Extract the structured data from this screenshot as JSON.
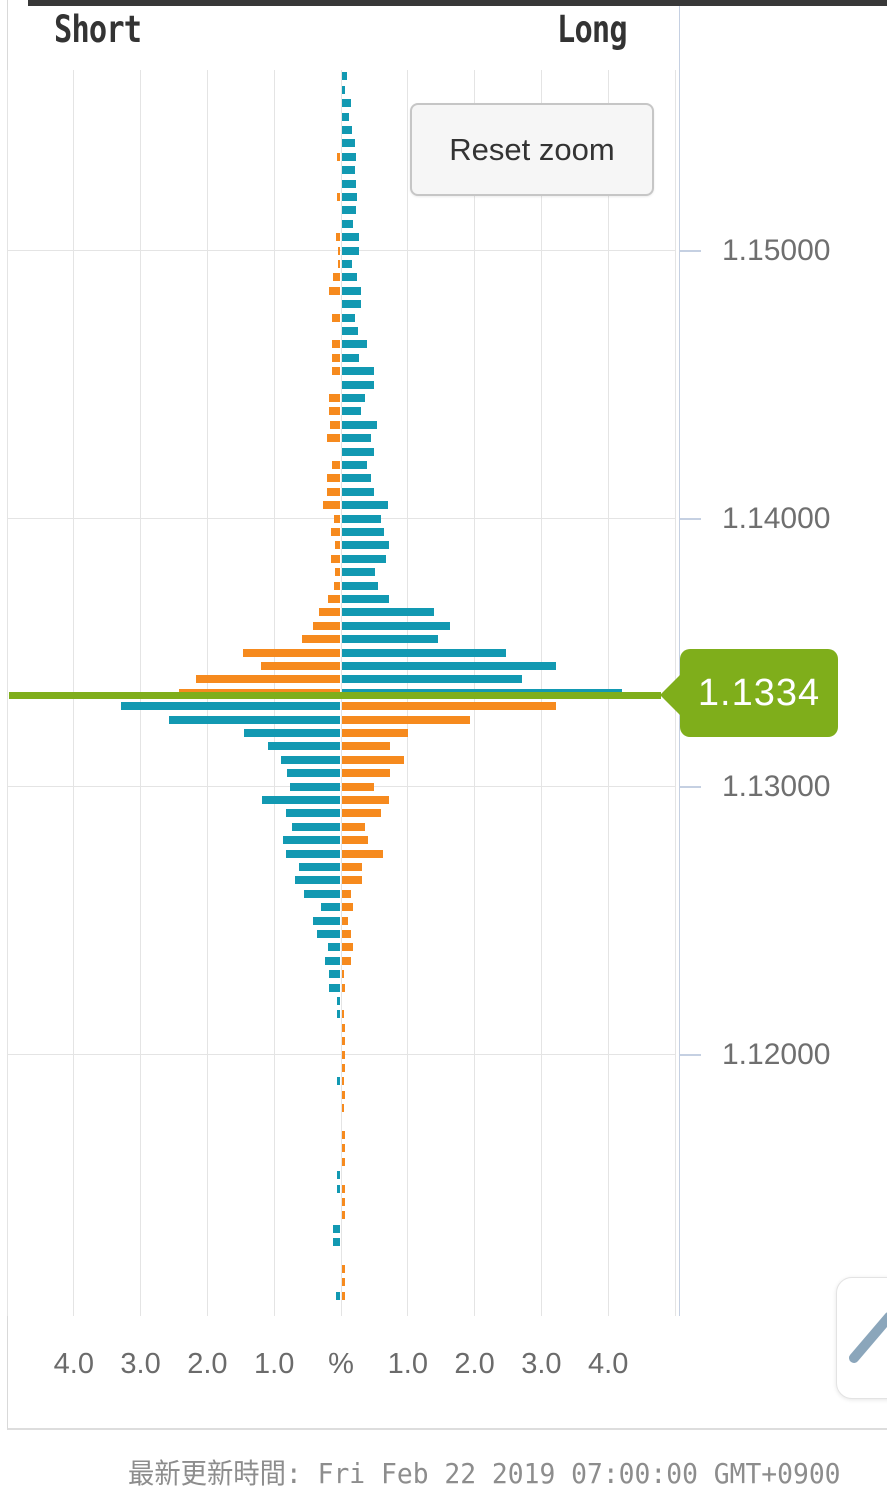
{
  "header": {
    "short": "Short",
    "long": "Long"
  },
  "controls": {
    "reset_zoom": "Reset zoom"
  },
  "price_flag": {
    "text": "1.1334"
  },
  "footer": {
    "last_update": "最新更新時間: Fri Feb 22 2019 07:00:00 GMT+0900"
  },
  "colors": {
    "profit_teal": "#1299b2",
    "loss_orange": "#f68a1e",
    "price_line_green": "#7fae1b",
    "grid": "#e4e4e4",
    "axis": "#c5d0e2",
    "top_bar": "#383838",
    "icon_blue_gray": "#8ba6bb"
  },
  "chart_data": {
    "type": "bar",
    "variant": "diverging horizontal open-positions pyramid (short left / long right)",
    "legend": {
      "left": "Short",
      "right": "Long"
    },
    "x_axis": {
      "unit": "percent",
      "range_pct": [
        -5,
        5
      ],
      "grid": true,
      "tick_labels": [
        "4.0",
        "3.0",
        "2.0",
        "1.0",
        "%",
        "1.0",
        "2.0",
        "3.0",
        "4.0"
      ],
      "tick_values": [
        -4,
        -3,
        -2,
        -1,
        0,
        1,
        2,
        3,
        4
      ]
    },
    "y_axis": {
      "side": "right",
      "ticks": [
        {
          "label": "1.15000",
          "value": 1.15
        },
        {
          "label": "1.14000",
          "value": 1.14
        },
        {
          "label": "1.13000",
          "value": 1.13
        },
        {
          "label": "1.12000",
          "value": 1.12
        }
      ]
    },
    "current_price": {
      "value": 1.1334,
      "label": "1.1334"
    },
    "price_bin_size": 0.0005,
    "color_rule": "bins above current price: short=orange, long=teal; bins below current price: short=teal, long=orange",
    "columns": [
      "price",
      "short_pct",
      "long_pct"
    ],
    "bars": [
      [
        1.1565,
        0,
        0.07
      ],
      [
        1.156,
        0,
        0.05
      ],
      [
        1.1555,
        0,
        0.14
      ],
      [
        1.155,
        0,
        0.1
      ],
      [
        1.1545,
        0,
        0.15
      ],
      [
        1.154,
        0,
        0.19
      ],
      [
        1.1535,
        0.045,
        0.21
      ],
      [
        1.153,
        0,
        0.2
      ],
      [
        1.1525,
        0,
        0.21
      ],
      [
        1.152,
        0.05,
        0.22
      ],
      [
        1.1515,
        0,
        0.21
      ],
      [
        1.151,
        0,
        0.16
      ],
      [
        1.1505,
        0.06,
        0.25
      ],
      [
        1.15,
        0.03,
        0.26
      ],
      [
        1.1495,
        0.03,
        0.15
      ],
      [
        1.149,
        0.1,
        0.22
      ],
      [
        1.1485,
        0.16,
        0.29
      ],
      [
        1.148,
        0,
        0.29
      ],
      [
        1.1475,
        0.115,
        0.19
      ],
      [
        1.147,
        0,
        0.24
      ],
      [
        1.1465,
        0.115,
        0.38
      ],
      [
        1.146,
        0.115,
        0.25
      ],
      [
        1.1455,
        0.115,
        0.48
      ],
      [
        1.145,
        0,
        0.48
      ],
      [
        1.1445,
        0.16,
        0.34
      ],
      [
        1.144,
        0.16,
        0.29
      ],
      [
        1.1435,
        0.145,
        0.52
      ],
      [
        1.143,
        0.2,
        0.43
      ],
      [
        1.1425,
        0,
        0.48
      ],
      [
        1.142,
        0.115,
        0.38
      ],
      [
        1.1415,
        0.2,
        0.43
      ],
      [
        1.141,
        0.2,
        0.48
      ],
      [
        1.1405,
        0.25,
        0.69
      ],
      [
        1.14,
        0.095,
        0.58
      ],
      [
        1.1395,
        0.135,
        0.63
      ],
      [
        1.139,
        0.08,
        0.71
      ],
      [
        1.1385,
        0.135,
        0.66
      ],
      [
        1.138,
        0.08,
        0.49
      ],
      [
        1.1375,
        0.095,
        0.54
      ],
      [
        1.137,
        0.175,
        0.71
      ],
      [
        1.1365,
        0.31,
        1.38
      ],
      [
        1.136,
        0.4,
        1.61
      ],
      [
        1.1355,
        0.57,
        1.43
      ],
      [
        1.135,
        1.45,
        2.46
      ],
      [
        1.1345,
        1.18,
        3.2
      ],
      [
        1.134,
        2.15,
        2.7
      ],
      [
        1.1335,
        2.41,
        4.19
      ],
      [
        1.133,
        3.28,
        3.2
      ],
      [
        1.1325,
        2.56,
        1.92
      ],
      [
        1.132,
        1.44,
        0.99
      ],
      [
        1.1315,
        1.08,
        0.72
      ],
      [
        1.131,
        0.88,
        0.93
      ],
      [
        1.1305,
        0.8,
        0.72
      ],
      [
        1.13,
        0.75,
        0.48
      ],
      [
        1.1295,
        1.17,
        0.71
      ],
      [
        1.129,
        0.81,
        0.58
      ],
      [
        1.1285,
        0.72,
        0.35
      ],
      [
        1.128,
        0.85,
        0.39
      ],
      [
        1.1275,
        0.81,
        0.62
      ],
      [
        1.127,
        0.62,
        0.3
      ],
      [
        1.1265,
        0.67,
        0.3
      ],
      [
        1.126,
        0.54,
        0.13
      ],
      [
        1.1255,
        0.29,
        0.17
      ],
      [
        1.125,
        0.4,
        0.09
      ],
      [
        1.1245,
        0.35,
        0.13
      ],
      [
        1.124,
        0.18,
        0.16
      ],
      [
        1.1235,
        0.22,
        0.13
      ],
      [
        1.123,
        0.17,
        0.03
      ],
      [
        1.1225,
        0.17,
        0.04
      ],
      [
        1.122,
        0.04,
        0
      ],
      [
        1.1215,
        0.04,
        0.03
      ],
      [
        1.121,
        0,
        0.04
      ],
      [
        1.1205,
        0,
        0.04
      ],
      [
        1.12,
        0,
        0.04
      ],
      [
        1.1195,
        0,
        0.05
      ],
      [
        1.119,
        0.04,
        0.03
      ],
      [
        1.1185,
        0,
        0.04
      ],
      [
        1.118,
        0,
        0.03
      ],
      [
        1.1175,
        0,
        0
      ],
      [
        1.117,
        0,
        0.04
      ],
      [
        1.1165,
        0,
        0.04
      ],
      [
        1.116,
        0,
        0.05
      ],
      [
        1.1155,
        0.04,
        0
      ],
      [
        1.115,
        0.04,
        0.04
      ],
      [
        1.1145,
        0,
        0.04
      ],
      [
        1.114,
        0,
        0.04
      ],
      [
        1.1135,
        0.11,
        0
      ],
      [
        1.113,
        0.11,
        0
      ],
      [
        1.1125,
        0,
        0
      ],
      [
        1.112,
        0,
        0.04
      ],
      [
        1.1115,
        0,
        0.04
      ],
      [
        1.111,
        0.06,
        0.04
      ]
    ]
  }
}
